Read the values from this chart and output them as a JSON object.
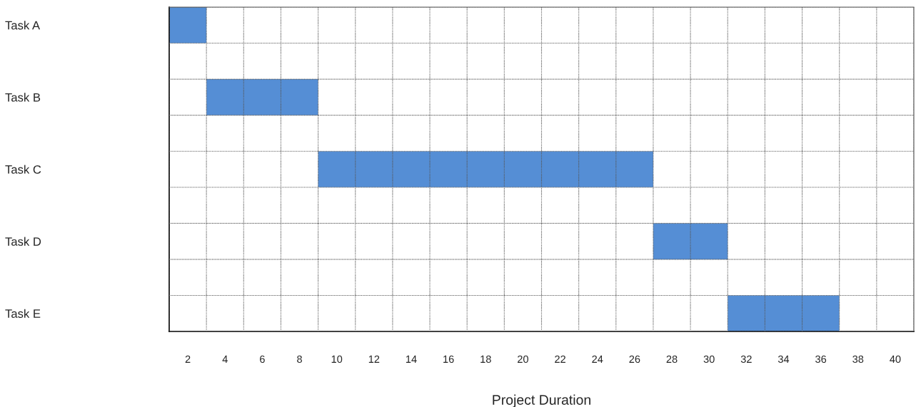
{
  "chart_data": {
    "type": "bar",
    "orientation": "horizontal",
    "xlabel": "Project Duration",
    "categories": [
      "Task A",
      "Task B",
      "Task C",
      "Task D",
      "Task E"
    ],
    "base": [
      1,
      3,
      9,
      27,
      31
    ],
    "values": [
      2,
      6,
      18,
      4,
      6
    ],
    "color": "#558ed5",
    "xlim": [
      1,
      41
    ],
    "xticks": [
      2,
      4,
      6,
      8,
      10,
      12,
      14,
      16,
      18,
      20,
      22,
      24,
      26,
      28,
      30,
      32,
      34,
      36,
      38,
      40
    ],
    "grid": true
  }
}
